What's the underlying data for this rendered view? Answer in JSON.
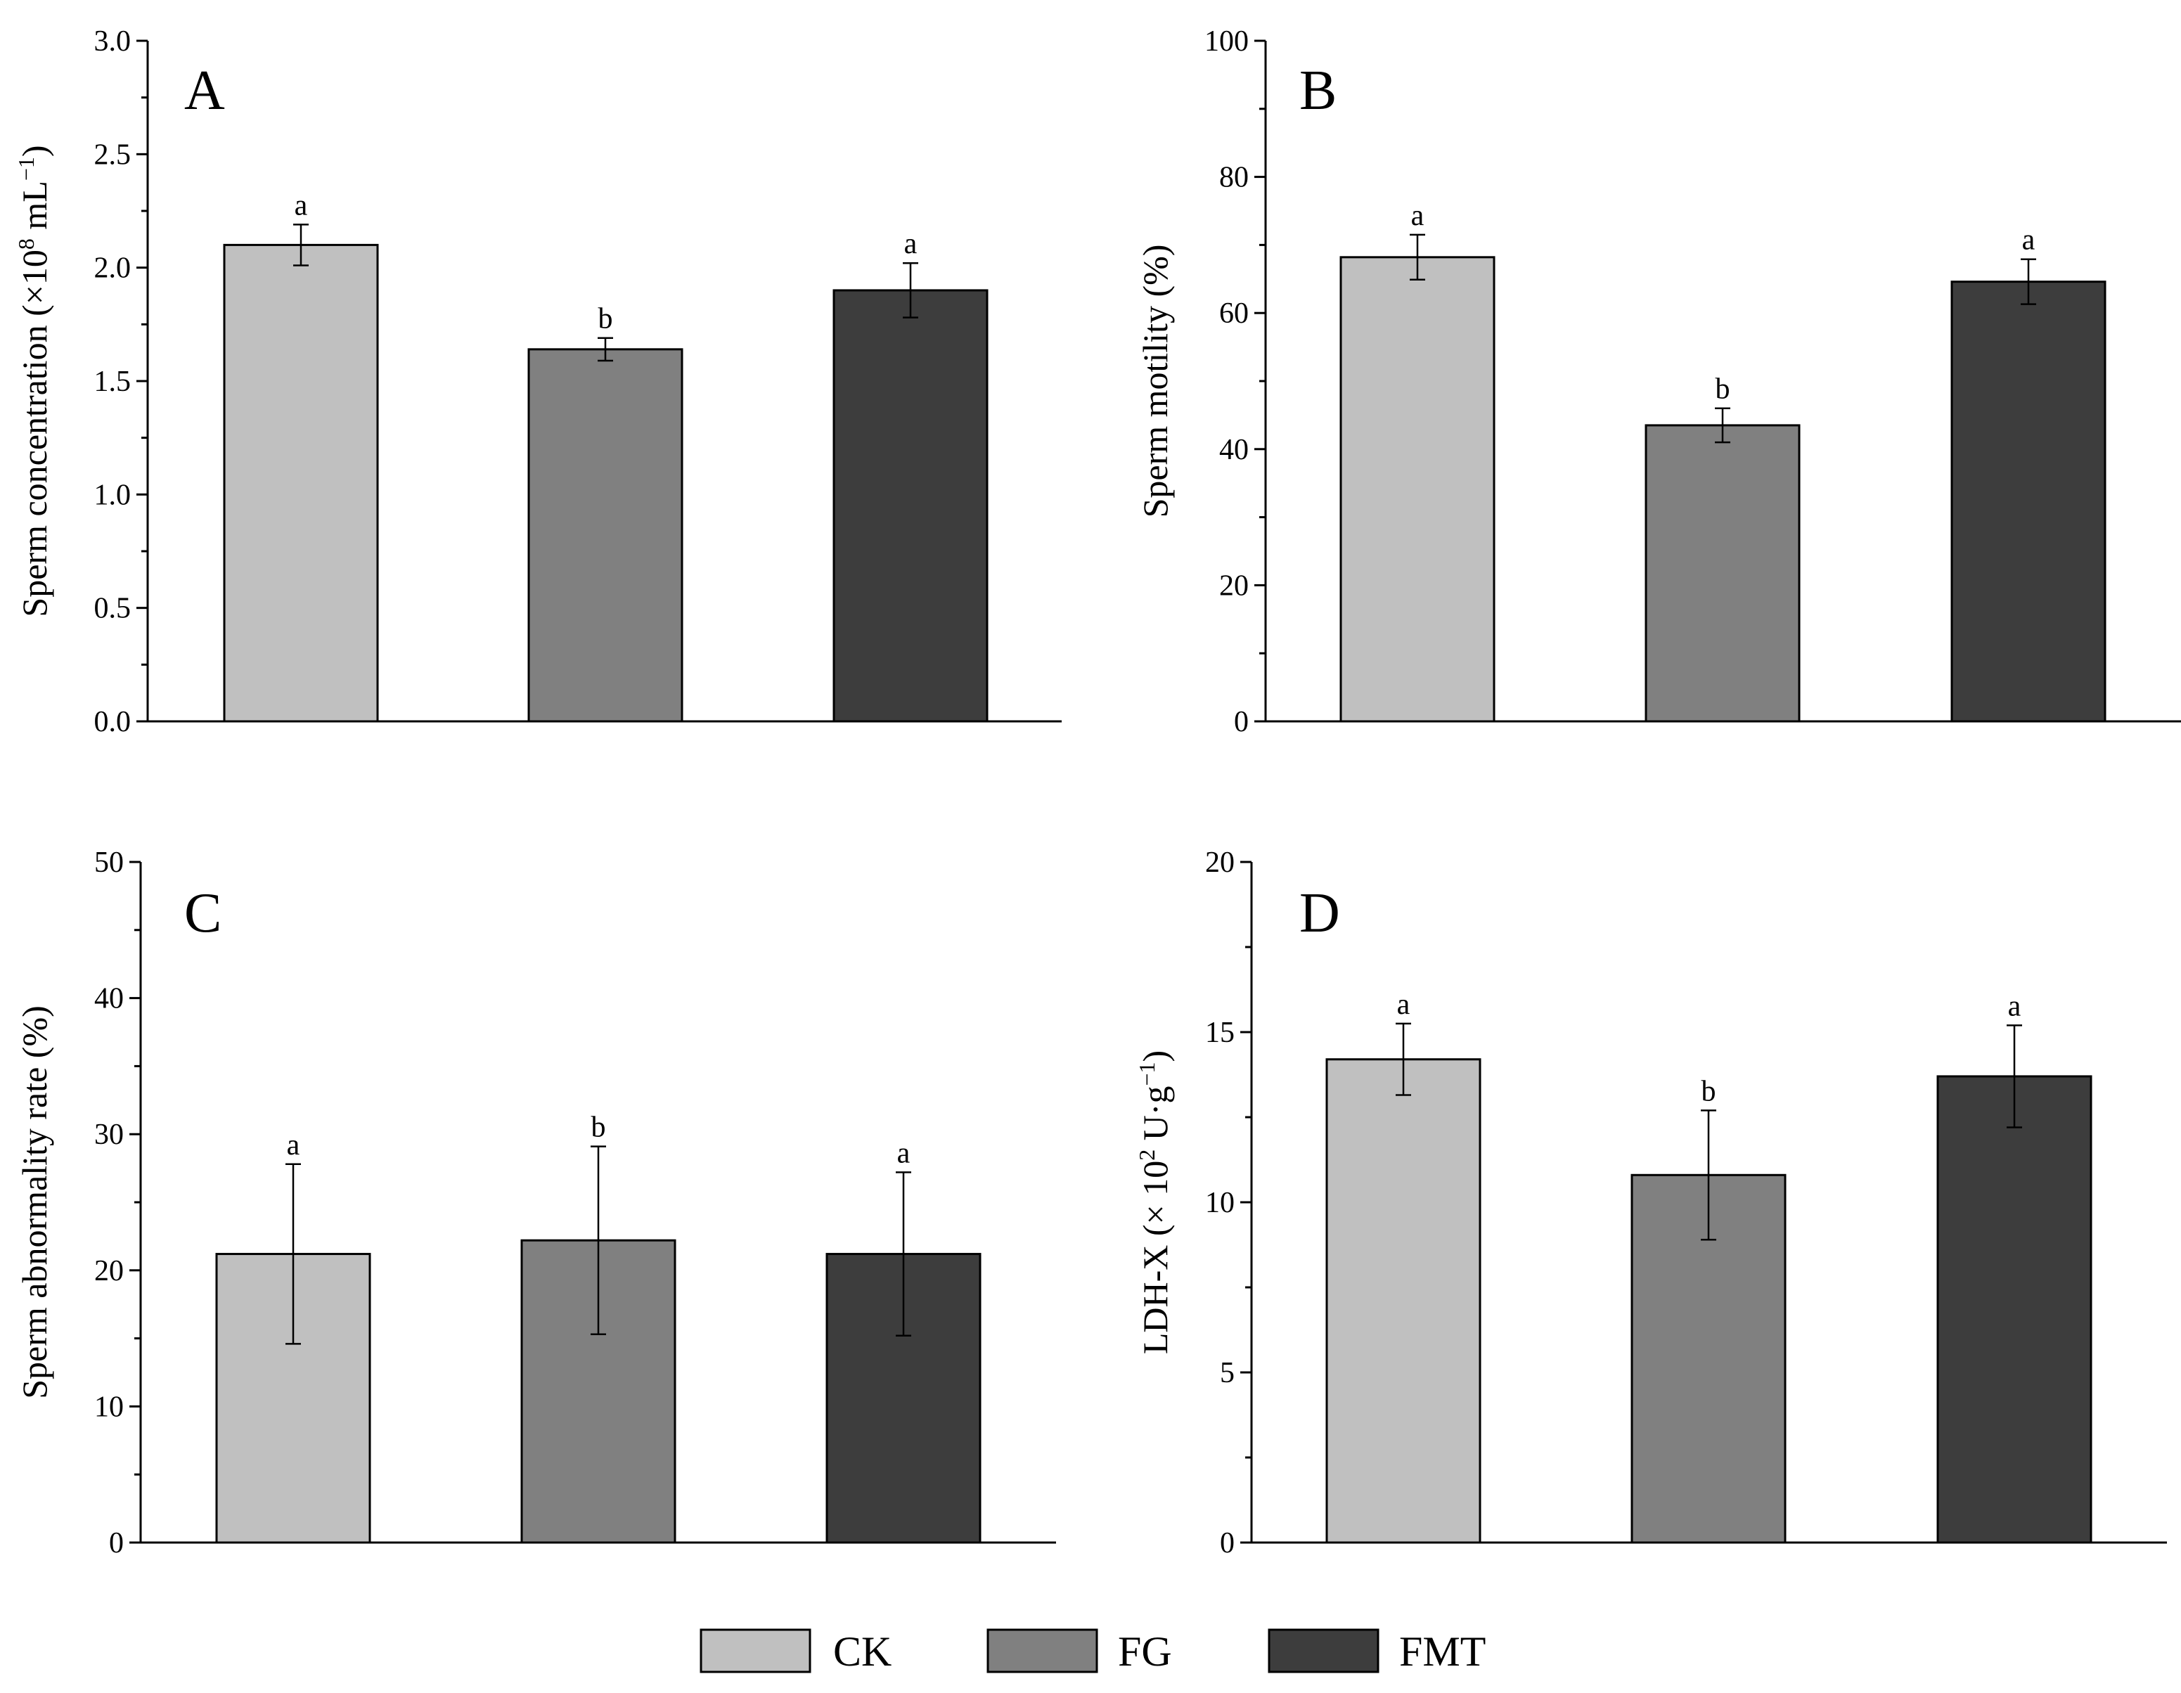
{
  "figure": {
    "categories": [
      "CK",
      "FG",
      "FMT"
    ],
    "colors": {
      "CK": "#c0c0c0",
      "FG": "#808080",
      "FMT": "#3d3d3d",
      "axis": "#000000",
      "error_bar": "#000000"
    }
  },
  "legend": {
    "items": [
      {
        "label": "CK",
        "color": "#c0c0c0"
      },
      {
        "label": "FG",
        "color": "#808080"
      },
      {
        "label": "FMT",
        "color": "#3d3d3d"
      }
    ]
  },
  "chart_data": [
    {
      "type": "bar",
      "panel": "A",
      "title": "",
      "ylabel_main": "Sperm concentration (×10",
      "ylabel_sup": "8",
      "ylabel_unit": " mL",
      "ylabel_unit_sup": "−1",
      "ylabel_end": ")",
      "categories": [
        "CK",
        "FG",
        "FMT"
      ],
      "values": [
        2.1,
        1.64,
        1.9
      ],
      "errors": [
        0.09,
        0.05,
        0.12
      ],
      "significance": [
        "a",
        "b",
        "a"
      ],
      "ylim": [
        0,
        3.0
      ],
      "major_ticks": [
        0.0,
        0.5,
        1.0,
        1.5,
        2.0,
        2.5,
        3.0
      ],
      "tick_labels": [
        "0.0",
        "0.5",
        "1.0",
        "1.5",
        "2.0",
        "2.5",
        "3.0"
      ],
      "minor_step": 0.25
    },
    {
      "type": "bar",
      "panel": "B",
      "title": "",
      "ylabel_main": "Sperm motility (%)",
      "categories": [
        "CK",
        "FG",
        "FMT"
      ],
      "values": [
        68.2,
        43.5,
        64.6
      ],
      "errors": [
        3.3,
        2.5,
        3.3
      ],
      "significance": [
        "a",
        "b",
        "a"
      ],
      "ylim": [
        0,
        100
      ],
      "major_ticks": [
        0,
        20,
        40,
        60,
        80,
        100
      ],
      "tick_labels": [
        "0",
        "20",
        "40",
        "60",
        "80",
        "100"
      ],
      "minor_step": 10
    },
    {
      "type": "bar",
      "panel": "C",
      "title": "",
      "ylabel_main": "Sperm abnormality rate (%)",
      "categories": [
        "CK",
        "FG",
        "FMT"
      ],
      "values": [
        21.2,
        22.2,
        21.2
      ],
      "errors": [
        6.6,
        6.9,
        6.0
      ],
      "significance": [
        "a",
        "b",
        "a"
      ],
      "ylim": [
        0,
        50
      ],
      "major_ticks": [
        0,
        10,
        20,
        30,
        40,
        50
      ],
      "tick_labels": [
        "0",
        "10",
        "20",
        "30",
        "40",
        "50"
      ],
      "minor_step": 5
    },
    {
      "type": "bar",
      "panel": "D",
      "title": "",
      "ylabel_main": "LDH-X (× 10",
      "ylabel_sup": "2",
      "ylabel_unit": " U·g",
      "ylabel_unit_sup": "−1",
      "ylabel_end": ")",
      "categories": [
        "CK",
        "FG",
        "FMT"
      ],
      "values": [
        14.2,
        10.8,
        13.7
      ],
      "errors": [
        1.05,
        1.9,
        1.5
      ],
      "significance": [
        "a",
        "b",
        "a"
      ],
      "ylim": [
        0,
        20
      ],
      "major_ticks": [
        0,
        5,
        10,
        15,
        20
      ],
      "tick_labels": [
        "0",
        "5",
        "10",
        "15",
        "20"
      ],
      "minor_step": 2.5
    }
  ]
}
